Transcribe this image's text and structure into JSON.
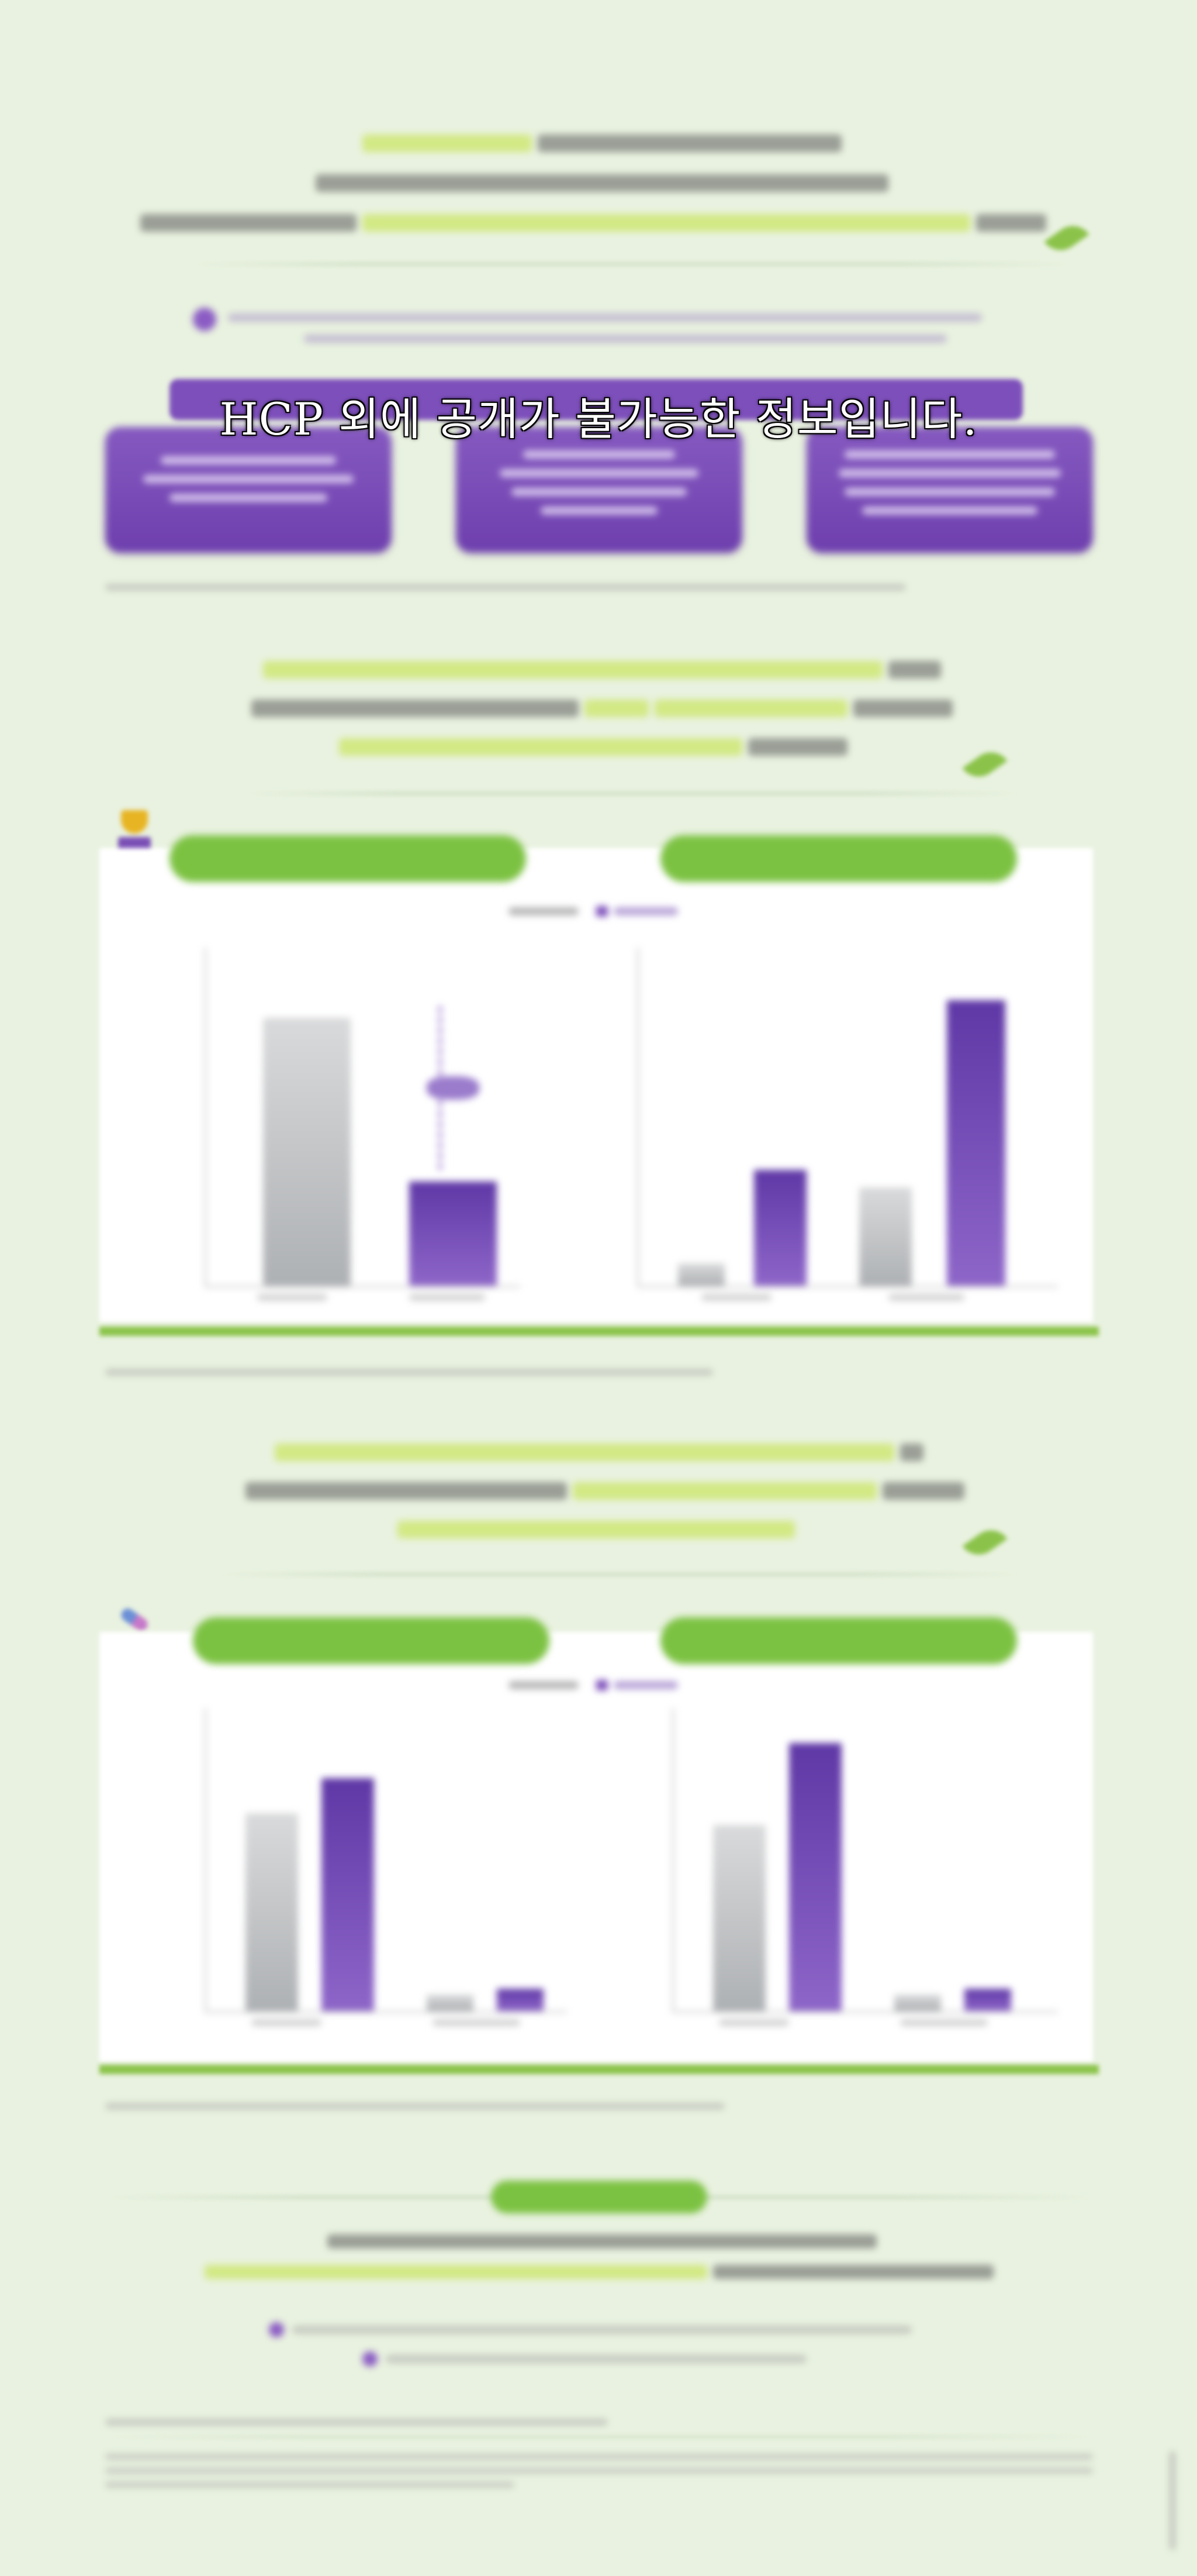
{
  "overlay": {
    "notice": "HCP 외에 공개가 불가능한 정보입니다."
  },
  "colors": {
    "background": "#e9f2e0",
    "accent_green": "#7cc242",
    "accent_purple": "#7d4fbb",
    "highlight": "#cfe87a"
  },
  "icons": [
    "leaf-icon",
    "trophy-icon",
    "pill-icon",
    "bullet-dot-icon"
  ]
}
